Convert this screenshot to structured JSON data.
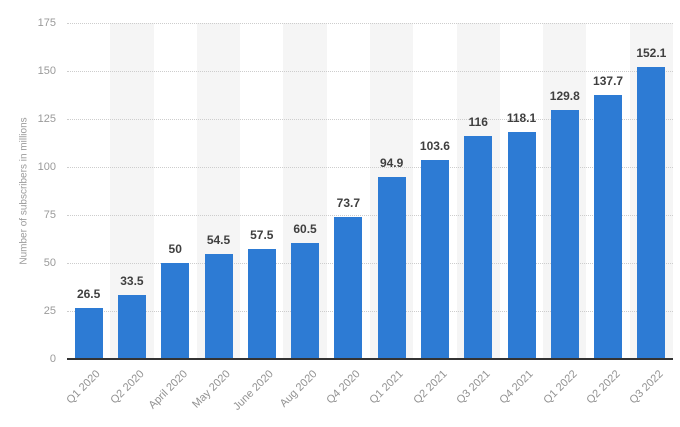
{
  "chart_data": {
    "type": "bar",
    "title": "",
    "ylabel": "Number of subscribers in millions",
    "xlabel": "",
    "categories": [
      "Q1 2020",
      "Q2 2020",
      "April 2020",
      "May 2020",
      "June 2020",
      "Aug 2020",
      "Q4 2020",
      "Q1 2021",
      "Q2 2021",
      "Q3 2021",
      "Q4 2021",
      "Q1 2022",
      "Q2 2022",
      "Q3 2022"
    ],
    "values": [
      26.5,
      33.5,
      50,
      54.5,
      57.5,
      60.5,
      73.7,
      94.9,
      103.6,
      116,
      118.1,
      129.8,
      137.7,
      152.1
    ],
    "value_labels": [
      "26.5",
      "33.5",
      "50",
      "54.5",
      "57.5",
      "60.5",
      "73.7",
      "94.9",
      "103.6",
      "116",
      "118.1",
      "129.8",
      "137.7",
      "152.1"
    ],
    "ylim": [
      0,
      175
    ],
    "yticks": [
      0,
      25,
      50,
      75,
      100,
      125,
      150,
      175
    ],
    "grid": "horizontal-dotted",
    "legend": "none",
    "colors": {
      "bar": "#2d7bd4",
      "column_stripe": "#f5f5f5",
      "gridline": "#cdcdcd",
      "axis_line": "#333333",
      "tick_label": "#9a9a9a",
      "x_tick_label": "#929292",
      "value_label": "#3f3f3f",
      "background": "#ffffff"
    }
  }
}
